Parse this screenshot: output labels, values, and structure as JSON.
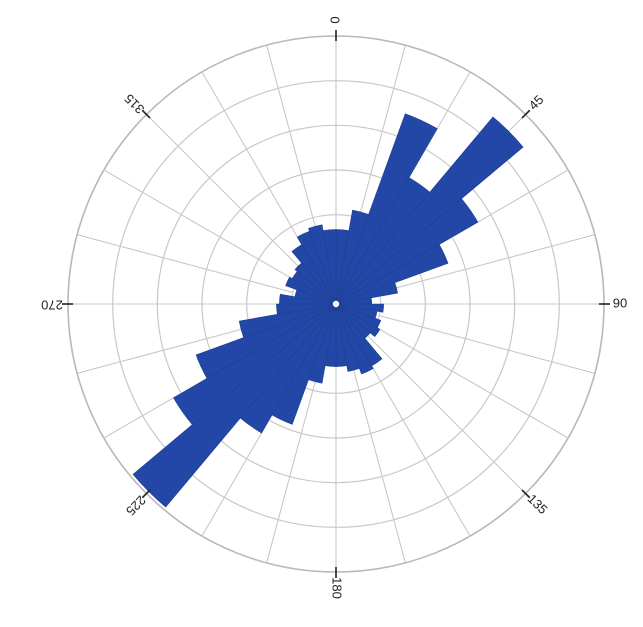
{
  "chart_data": {
    "type": "rose",
    "angle_unit": "degrees",
    "direction": "clockwise",
    "zero_at": "top",
    "bin_width": 10,
    "bins": [
      0,
      10,
      20,
      30,
      40,
      50,
      60,
      70,
      80,
      90,
      100,
      110,
      120,
      130,
      140,
      150,
      160,
      170,
      180,
      190,
      200,
      210,
      220,
      230,
      240,
      250,
      260,
      270,
      280,
      290,
      300,
      310,
      320,
      330,
      340,
      350
    ],
    "values": [
      2.5,
      3.2,
      6.8,
      4.9,
      8.2,
      5.5,
      4.0,
      2.1,
      1.2,
      1.6,
      1.4,
      1.6,
      1.7,
      1.5,
      2.4,
      2.5,
      2.3,
      2.1,
      2.1,
      2.7,
      4.3,
      5.0,
      8.9,
      6.3,
      5.0,
      3.3,
      2.0,
      1.9,
      1.4,
      1.8,
      1.7,
      1.8,
      2.3,
      2.6,
      2.7,
      2.5
    ],
    "rings": 6,
    "r_max": 9,
    "direction_labels": [
      "0",
      "45",
      "90",
      "135",
      "180",
      "225",
      "270",
      "315"
    ],
    "grid": true,
    "bar_color": "#2247a6",
    "grid_color": "#c8c8c8",
    "text_color": "#222222"
  }
}
